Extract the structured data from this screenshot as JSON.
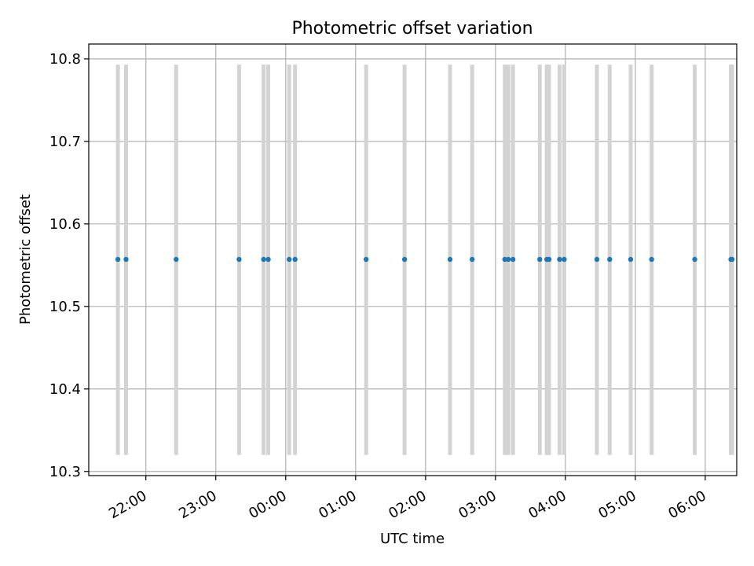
{
  "chart_data": {
    "type": "scatter",
    "title": "Photometric offset variation",
    "xlabel": "UTC time",
    "ylabel": "Photometric offset",
    "xlim": [
      "21:11",
      "06:27"
    ],
    "ylim": [
      10.295,
      10.818
    ],
    "x_ticks": [
      "22:00",
      "23:00",
      "00:00",
      "01:00",
      "02:00",
      "03:00",
      "04:00",
      "05:00",
      "06:00"
    ],
    "y_ticks": [
      10.3,
      10.4,
      10.5,
      10.6,
      10.7,
      10.8
    ],
    "grid": true,
    "colors": {
      "points": "#1f77b4",
      "bands": "#d3d3d3",
      "grid": "#b0b0b0"
    },
    "band_range": [
      10.32,
      10.793
    ],
    "series": [
      {
        "x": [
          "21:36",
          "21:43",
          "22:26",
          "23:20",
          "23:41",
          "23:45",
          "00:03",
          "00:08",
          "01:09",
          "01:42",
          "02:21",
          "02:40",
          "03:08",
          "03:11",
          "03:15",
          "03:38",
          "03:44",
          "03:46",
          "03:55",
          "03:59",
          "04:27",
          "04:38",
          "04:56",
          "05:14",
          "05:51",
          "06:22",
          "06:23"
        ],
        "y": [
          10.557,
          10.557,
          10.557,
          10.557,
          10.557,
          10.557,
          10.557,
          10.557,
          10.557,
          10.557,
          10.557,
          10.557,
          10.557,
          10.557,
          10.557,
          10.557,
          10.557,
          10.557,
          10.557,
          10.557,
          10.557,
          10.557,
          10.557,
          10.557,
          10.557,
          10.557,
          10.557
        ]
      }
    ]
  }
}
